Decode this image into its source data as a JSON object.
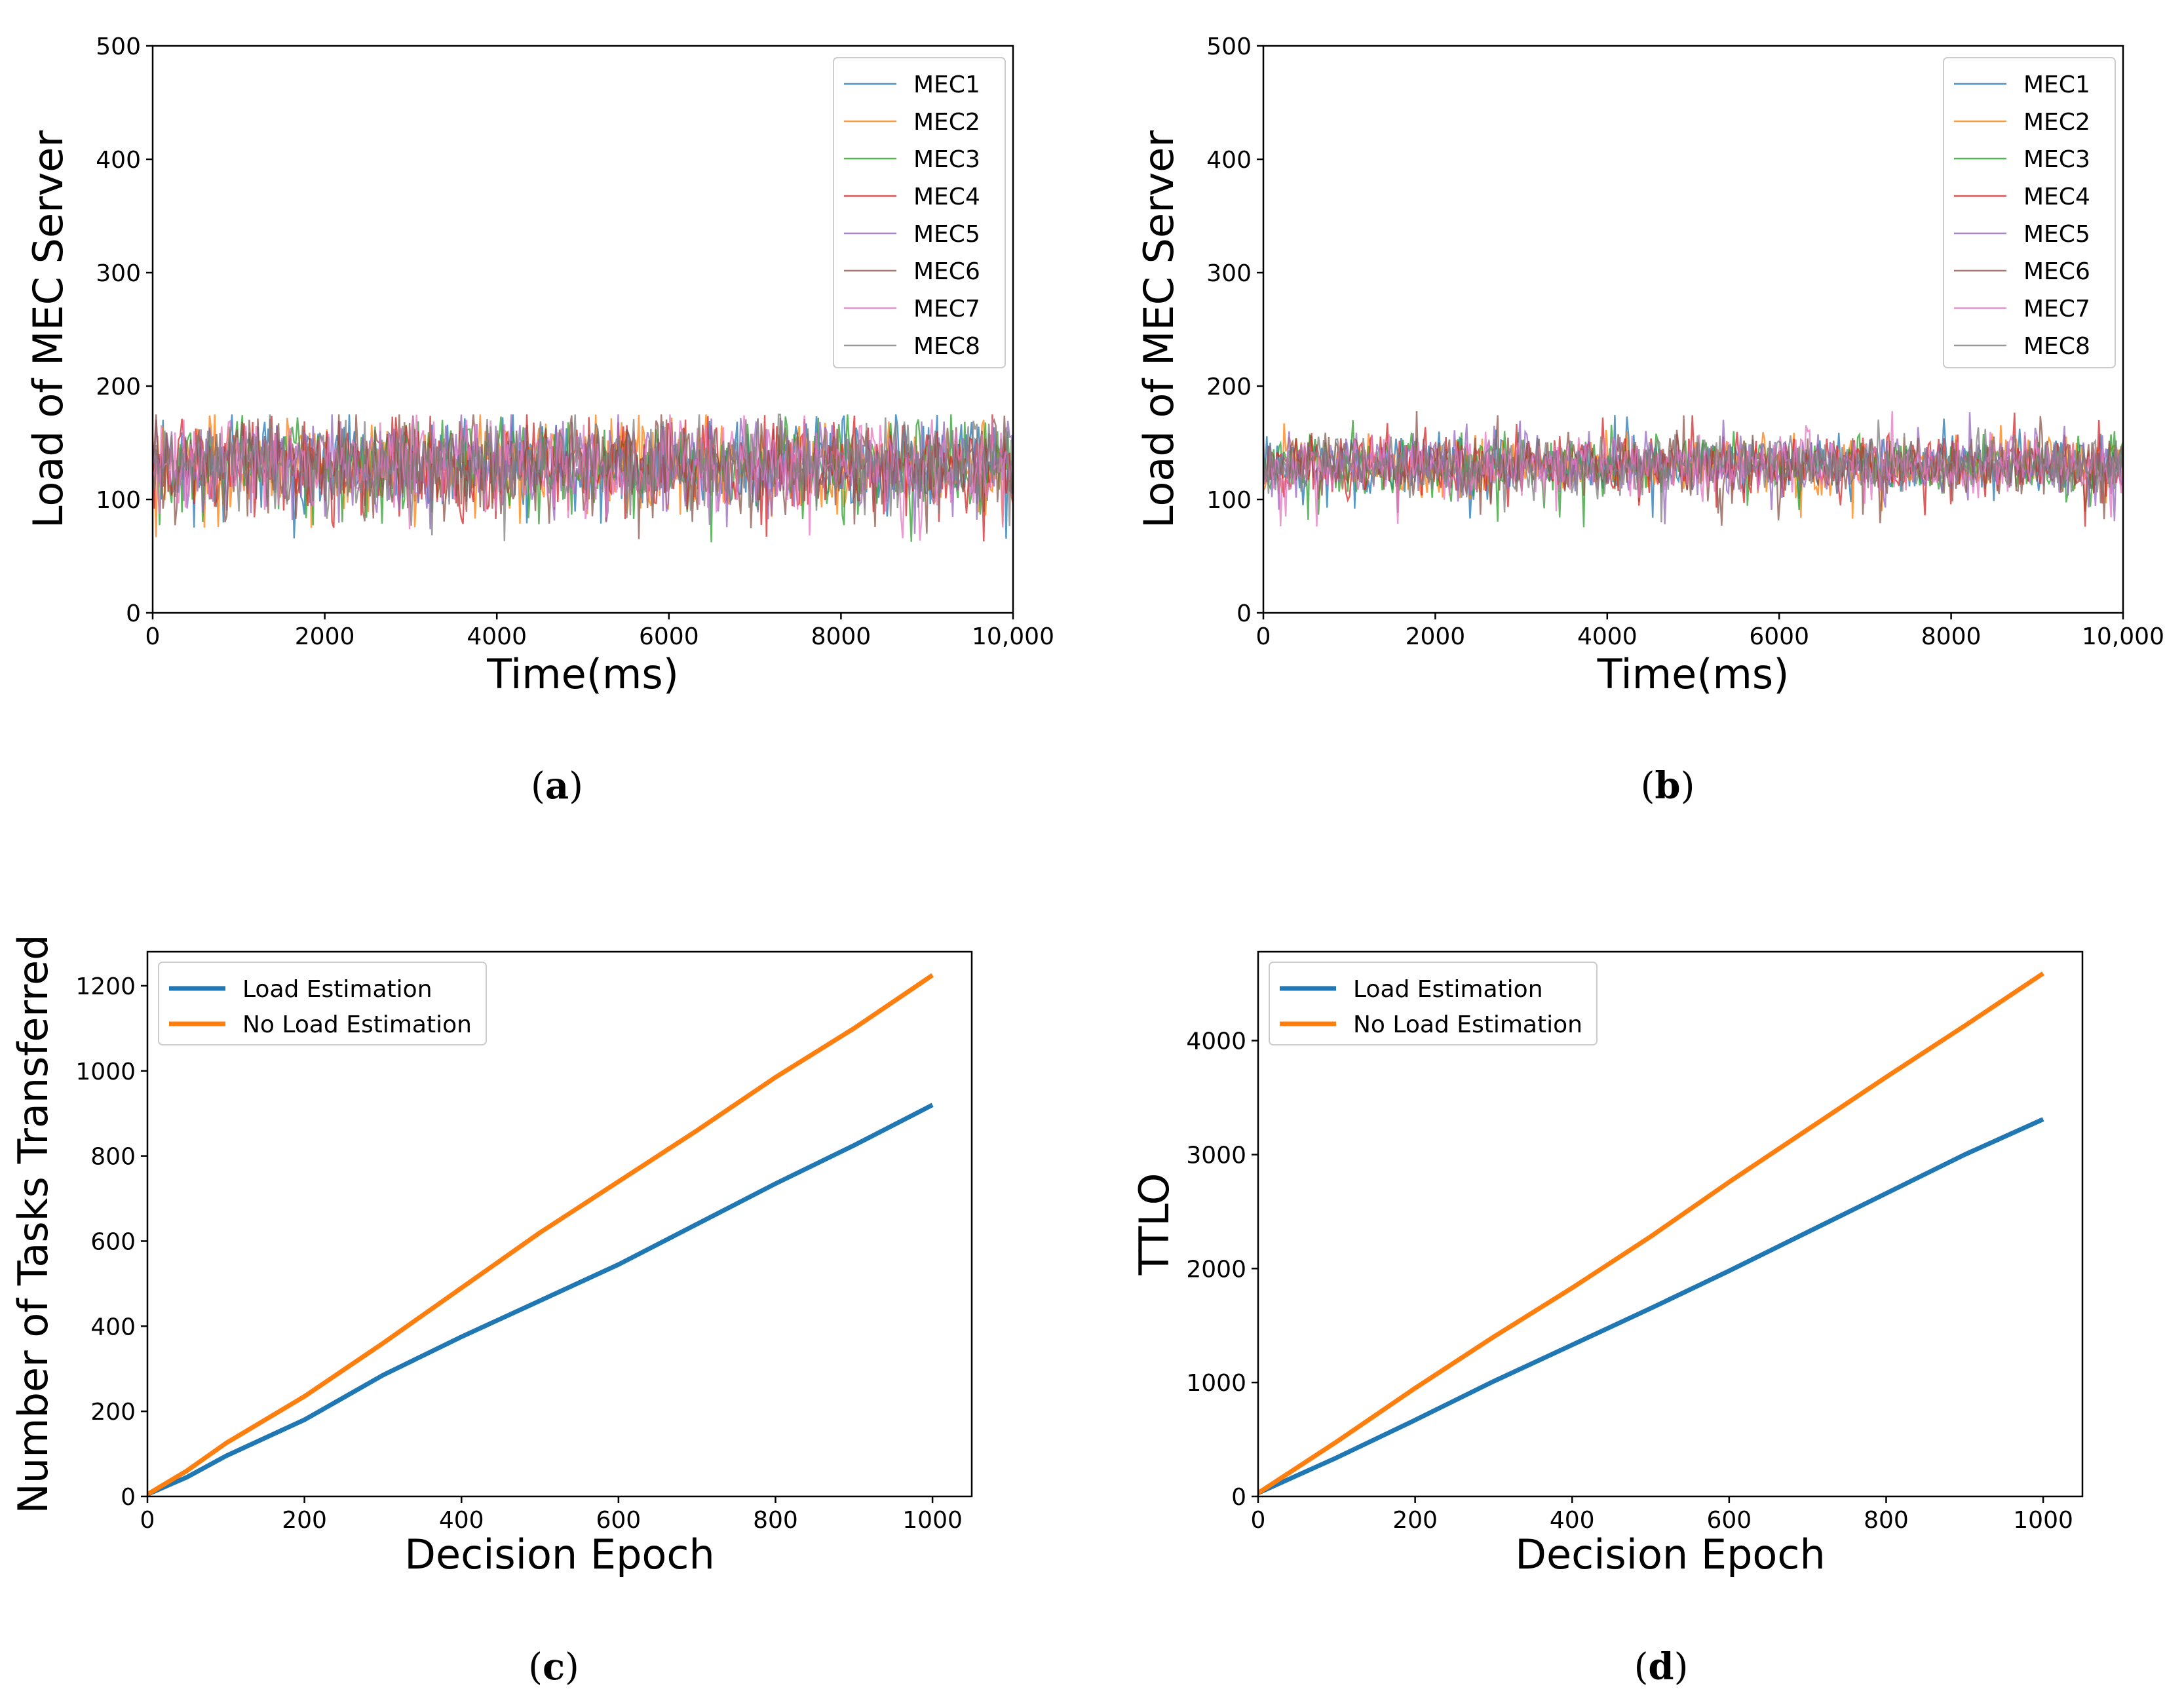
{
  "colors": {
    "MEC1": "#1f77b4",
    "MEC2": "#ff7f0e",
    "MEC3": "#2ca02c",
    "MEC4": "#d62728",
    "MEC5": "#9467bd",
    "MEC6": "#8c564b",
    "MEC7": "#e377c2",
    "MEC8": "#7f7f7f"
  },
  "chart_data": [
    {
      "panel": "a",
      "caption_label": "a",
      "type": "line",
      "xlabel": "Time(ms)",
      "ylabel": "Load of MEC Server",
      "xlim": [
        0,
        10000
      ],
      "ylim": [
        0,
        500
      ],
      "xticks": [
        0,
        2000,
        4000,
        6000,
        8000,
        10000
      ],
      "xtick_labels": [
        "0",
        "2000",
        "4000",
        "6000",
        "8000",
        "10,000"
      ],
      "yticks": [
        0,
        100,
        200,
        300,
        400,
        500
      ],
      "ytick_labels": [
        "0",
        "100",
        "200",
        "300",
        "400",
        "500"
      ],
      "legend_position": "top-right",
      "noise": {
        "mean": 130,
        "spread": 20,
        "min": 62,
        "max": 175,
        "points_per_series": 500,
        "seed": 11
      },
      "series": [
        {
          "name": "MEC1"
        },
        {
          "name": "MEC2"
        },
        {
          "name": "MEC3"
        },
        {
          "name": "MEC4"
        },
        {
          "name": "MEC5"
        },
        {
          "name": "MEC6"
        },
        {
          "name": "MEC7"
        },
        {
          "name": "MEC8"
        }
      ]
    },
    {
      "panel": "b",
      "caption_label": "b",
      "type": "line",
      "xlabel": "Time(ms)",
      "ylabel": "Load of MEC Server",
      "xlim": [
        0,
        10000
      ],
      "ylim": [
        0,
        500
      ],
      "xticks": [
        0,
        2000,
        4000,
        6000,
        8000,
        10000
      ],
      "xtick_labels": [
        "0",
        "2000",
        "4000",
        "6000",
        "8000",
        "10,000"
      ],
      "yticks": [
        0,
        100,
        200,
        300,
        400,
        500
      ],
      "ytick_labels": [
        "0",
        "100",
        "200",
        "300",
        "400",
        "500"
      ],
      "legend_position": "top-right",
      "noise": {
        "mean": 130,
        "spread": 13,
        "min": 75,
        "max": 178,
        "points_per_series": 500,
        "seed": 29
      },
      "series": [
        {
          "name": "MEC1"
        },
        {
          "name": "MEC2"
        },
        {
          "name": "MEC3"
        },
        {
          "name": "MEC4"
        },
        {
          "name": "MEC5"
        },
        {
          "name": "MEC6"
        },
        {
          "name": "MEC7"
        },
        {
          "name": "MEC8"
        }
      ]
    },
    {
      "panel": "c",
      "caption_label": "c",
      "type": "line",
      "xlabel": "Decision Epoch",
      "ylabel": "Number of Tasks Transferred",
      "xlim": [
        0,
        1050
      ],
      "ylim": [
        0,
        1280
      ],
      "xticks": [
        0,
        200,
        400,
        600,
        800,
        1000
      ],
      "xtick_labels": [
        "0",
        "200",
        "400",
        "600",
        "800",
        "1000"
      ],
      "yticks": [
        0,
        200,
        400,
        600,
        800,
        1000,
        1200
      ],
      "ytick_labels": [
        "0",
        "200",
        "400",
        "600",
        "800",
        "1000",
        "1200"
      ],
      "legend_position": "top-left",
      "series": [
        {
          "name": "Load Estimation",
          "color": "#1f77b4",
          "x": [
            0,
            50,
            100,
            200,
            300,
            400,
            500,
            600,
            700,
            800,
            900,
            1000
          ],
          "y": [
            5,
            45,
            95,
            180,
            285,
            375,
            460,
            545,
            640,
            735,
            825,
            920
          ]
        },
        {
          "name": "No Load Estimation",
          "color": "#ff7f0e",
          "x": [
            0,
            50,
            100,
            200,
            300,
            400,
            500,
            600,
            700,
            800,
            900,
            1000
          ],
          "y": [
            5,
            60,
            125,
            235,
            360,
            490,
            620,
            740,
            860,
            985,
            1100,
            1225
          ]
        }
      ]
    },
    {
      "panel": "d",
      "caption_label": "d",
      "type": "line",
      "xlabel": "Decision Epoch",
      "ylabel": "TTLO",
      "xlim": [
        0,
        1050
      ],
      "ylim": [
        0,
        4780
      ],
      "xticks": [
        0,
        200,
        400,
        600,
        800,
        1000
      ],
      "xtick_labels": [
        "0",
        "200",
        "400",
        "600",
        "800",
        "1000"
      ],
      "yticks": [
        0,
        1000,
        2000,
        3000,
        4000
      ],
      "ytick_labels": [
        "0",
        "1000",
        "2000",
        "3000",
        "4000"
      ],
      "legend_position": "top-left",
      "series": [
        {
          "name": "Load Estimation",
          "color": "#1f77b4",
          "x": [
            0,
            100,
            200,
            300,
            400,
            500,
            600,
            700,
            800,
            900,
            1000
          ],
          "y": [
            30,
            340,
            670,
            1010,
            1330,
            1650,
            1980,
            2320,
            2660,
            3000,
            3310
          ]
        },
        {
          "name": "No Load Estimation",
          "color": "#ff7f0e",
          "x": [
            0,
            100,
            200,
            300,
            400,
            500,
            600,
            700,
            800,
            900,
            1000
          ],
          "y": [
            30,
            480,
            950,
            1400,
            1830,
            2280,
            2760,
            3220,
            3680,
            4130,
            4590
          ]
        }
      ]
    }
  ]
}
